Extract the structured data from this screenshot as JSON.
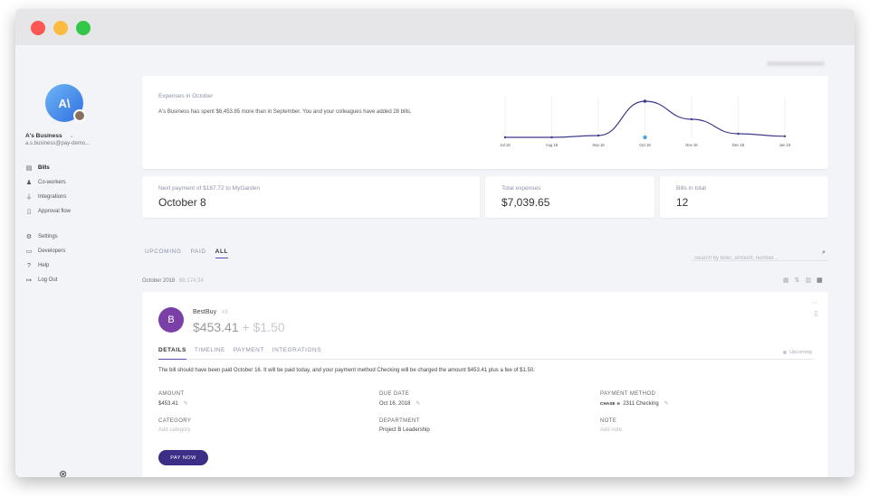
{
  "window": {
    "controls": [
      "close",
      "minimize",
      "maximize"
    ]
  },
  "sidebar": {
    "logo_text": "A\\",
    "business_name": "A's Business",
    "business_chevron": "⌄",
    "email": "a.s.business@pay-demo...",
    "nav": [
      {
        "label": "Bills",
        "icon": "document-icon",
        "glyph": "▤",
        "active": true
      },
      {
        "label": "Co-workers",
        "icon": "users-icon",
        "glyph": "♟",
        "active": false
      },
      {
        "label": "Integrations",
        "icon": "plug-icon",
        "glyph": "⏚",
        "active": false
      },
      {
        "label": "Approval flow",
        "icon": "clipboard-icon",
        "glyph": "▯",
        "active": false
      }
    ],
    "nav_secondary": [
      {
        "label": "Settings",
        "icon": "gear-icon",
        "glyph": "⚙"
      },
      {
        "label": "Developers",
        "icon": "code-icon",
        "glyph": "▭"
      },
      {
        "label": "Help",
        "icon": "help-icon",
        "glyph": "?"
      },
      {
        "label": "Log Out",
        "icon": "logout-icon",
        "glyph": "↦"
      }
    ],
    "bottom_icon": "⊗"
  },
  "expenses": {
    "title": "Expenses in October",
    "description": "A's Business has spent $6,453.85 more than in September. You and your colleagues have added 28 bills."
  },
  "chart_data": {
    "type": "line",
    "categories": [
      "Jul 18",
      "Aug 18",
      "Sep 18",
      "Oct 18",
      "Nov 18",
      "Dec 18",
      "Jan 19"
    ],
    "series": [
      {
        "values": [
          0,
          0,
          0.05,
          1.0,
          0.5,
          0.1,
          0.03
        ]
      }
    ],
    "highlight": "Oct 18",
    "grid": true,
    "title": "",
    "xlabel": "",
    "ylabel": "",
    "colors": {
      "line": "#3d3a8c",
      "highlight": "#4aa3e0"
    }
  },
  "stats": {
    "next_payment_label": "Next payment of $187.72 to MyGarden",
    "next_payment_value": "October 8",
    "total_expenses_label": "Total expenses",
    "total_expenses_value": "$7,039.65",
    "bills_total_label": "Bills in total",
    "bills_total_value": "12"
  },
  "filters": {
    "tabs": [
      "UPCOMING",
      "PAID",
      "ALL"
    ],
    "active_tab": "ALL",
    "search_placeholder": "Search by biller, amount, number...",
    "search_icon": "⌕"
  },
  "group": {
    "month": "October 2018",
    "amount": "$8,174.34"
  },
  "view_icons": [
    "▦",
    "⇅",
    "▥",
    "▦"
  ],
  "bill": {
    "avatar_letter": "B",
    "name": "BestBuy",
    "badge": "#3",
    "amount": "$453.41",
    "fee": " + $1.50",
    "menu": "⋯",
    "doc_icon": "▯",
    "tabs": [
      "DETAILS",
      "TIMELINE",
      "PAYMENT",
      "INTEGRATIONS"
    ],
    "active_tab": "DETAILS",
    "status": "Upcoming",
    "description": "The bill should have been paid October 16. It will be paid today, and your payment method Checking will be charged the amount $453.41 plus a fee of $1.50.",
    "fields": {
      "amount_label": "AMOUNT",
      "amount_value": "$453.41",
      "due_label": "DUE DATE",
      "due_value": "Oct 16, 2018",
      "method_label": "PAYMENT METHOD",
      "method_bank": "CHASE ⊙",
      "method_value": "2311 Checking",
      "category_label": "CATEGORY",
      "category_placeholder": "Add category",
      "department_label": "DEPARTMENT",
      "department_value": "Project B Leadership",
      "note_label": "NOTE",
      "note_placeholder": "Add note"
    },
    "pay_label": "PAY NOW",
    "edit_glyph": "✎"
  }
}
